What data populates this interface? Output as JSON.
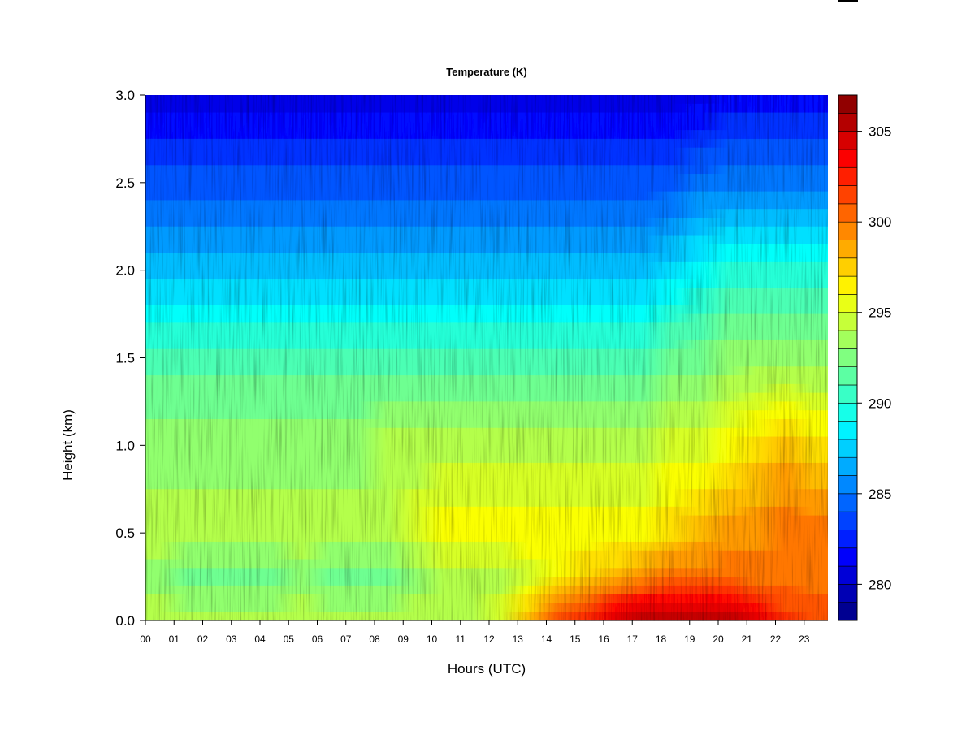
{
  "chart_data": {
    "type": "heatmap",
    "title": "Temperature (K)",
    "xlabel": "Hours (UTC)",
    "ylabel": "Height (km)",
    "x_ticks": [
      "00",
      "01",
      "02",
      "03",
      "04",
      "05",
      "06",
      "07",
      "08",
      "09",
      "10",
      "11",
      "12",
      "13",
      "14",
      "15",
      "16",
      "17",
      "18",
      "19",
      "20",
      "21",
      "22",
      "23"
    ],
    "xlim": [
      0,
      23.85
    ],
    "y_ticks": [
      "0.0",
      "0.5",
      "1.0",
      "1.5",
      "2.0",
      "2.5",
      "3.0"
    ],
    "ylim": [
      0,
      3.0
    ],
    "colorbar": {
      "label": "",
      "range": [
        278,
        307
      ],
      "ticks": [
        "280",
        "285",
        "290",
        "295",
        "300",
        "305"
      ],
      "levels": 29,
      "colormap": "jet"
    },
    "field_summary": [
      {
        "height_km": 0.0,
        "temperature_K": [
          294,
          294,
          294,
          294,
          294,
          294,
          294,
          294,
          294,
          294,
          294,
          294,
          295,
          298,
          301,
          303,
          305,
          306,
          306,
          306,
          305,
          304,
          302,
          301
        ]
      },
      {
        "height_km": 0.25,
        "temperature_K": [
          293,
          292,
          292,
          292,
          292,
          293,
          292,
          292,
          292,
          293,
          294,
          294,
          294,
          295,
          296,
          297,
          298,
          299,
          300,
          300,
          300,
          300,
          300,
          300
        ]
      },
      {
        "height_km": 0.5,
        "temperature_K": [
          294,
          294,
          294,
          294,
          294,
          294,
          294,
          294,
          294,
          295,
          296,
          296,
          296,
          296,
          296,
          296,
          296,
          296,
          297,
          298,
          299,
          299,
          300,
          300
        ]
      },
      {
        "height_km": 1.0,
        "temperature_K": [
          293,
          293,
          293,
          293,
          293,
          293,
          293,
          293,
          294,
          294,
          294,
          294,
          294,
          294,
          294,
          294,
          294,
          294,
          295,
          295,
          296,
          297,
          298,
          297
        ]
      },
      {
        "height_km": 1.5,
        "temperature_K": [
          291,
          291,
          291,
          291,
          291,
          291,
          291,
          291,
          291,
          291,
          291,
          291,
          291,
          291,
          291,
          291,
          291,
          291,
          292,
          292,
          293,
          293,
          293,
          293
        ]
      },
      {
        "height_km": 2.0,
        "temperature_K": [
          287,
          287,
          287,
          287,
          287,
          287,
          287,
          287,
          287,
          287,
          287,
          287,
          287,
          287,
          287,
          287,
          287,
          287,
          288,
          289,
          290,
          290,
          290,
          290
        ]
      },
      {
        "height_km": 2.5,
        "temperature_K": [
          284,
          284,
          284,
          284,
          284,
          284,
          284,
          284,
          284,
          284,
          284,
          284,
          284,
          284,
          284,
          284,
          284,
          284,
          284,
          285,
          285,
          285,
          285,
          285
        ]
      },
      {
        "height_km": 3.0,
        "temperature_K": [
          281,
          281,
          281,
          281,
          281,
          281,
          281,
          281,
          281,
          281,
          281,
          281,
          281,
          281,
          281,
          281,
          281,
          281,
          281,
          281,
          282,
          282,
          282,
          282
        ]
      }
    ]
  }
}
